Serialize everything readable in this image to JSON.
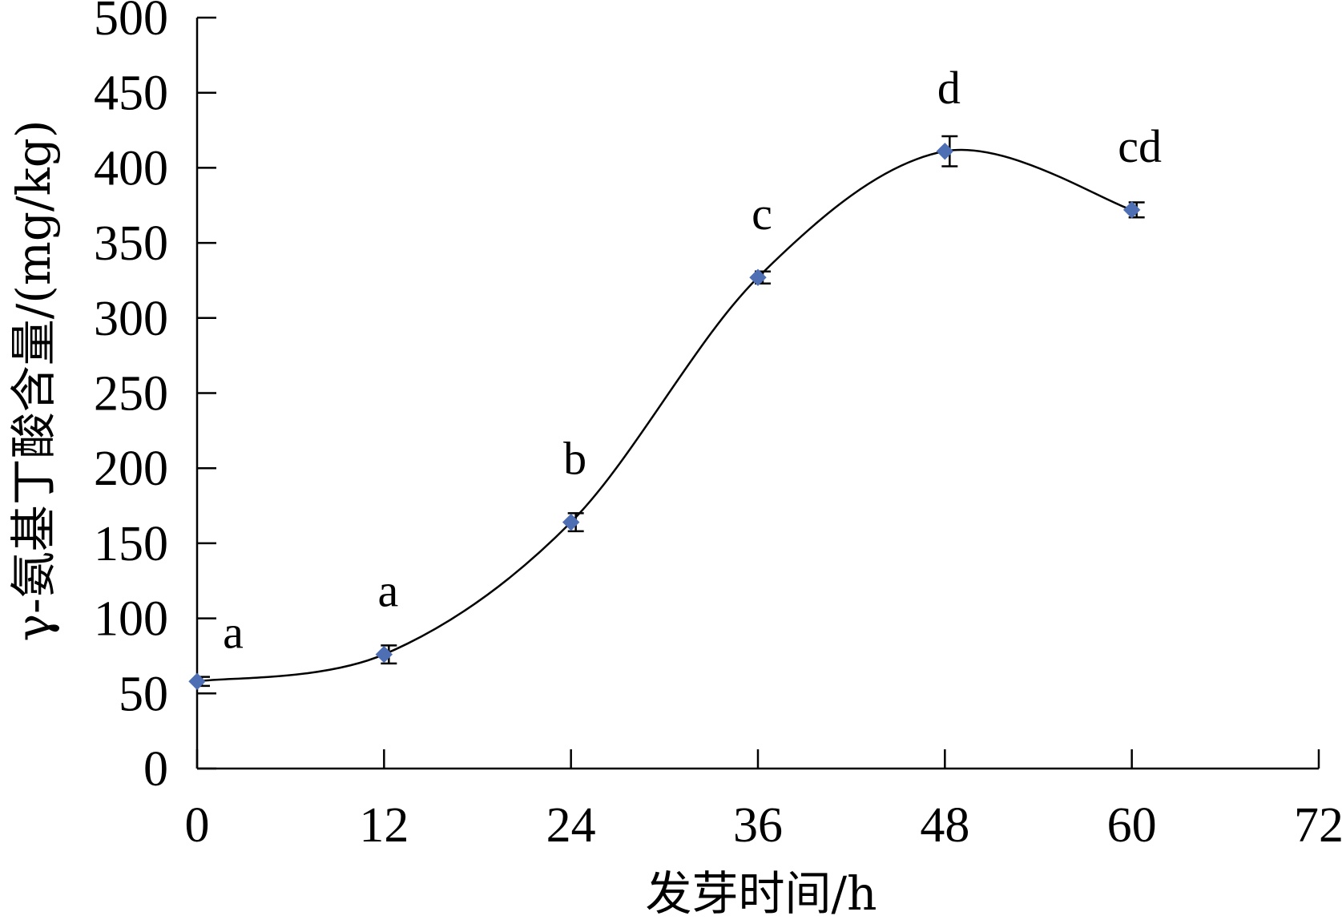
{
  "chart_data": {
    "type": "line",
    "xlabel": "发芽时间/h",
    "ylabel": "γ-氨基丁酸含量/(mg/kg)",
    "xlim": [
      0,
      72
    ],
    "ylim": [
      0,
      500
    ],
    "x_ticks": [
      "0",
      "12",
      "24",
      "36",
      "48",
      "60",
      "72"
    ],
    "y_ticks": [
      "0",
      "50",
      "100",
      "150",
      "200",
      "250",
      "300",
      "350",
      "400",
      "450",
      "500"
    ],
    "grid": false,
    "smooth": true,
    "colors": {
      "marker": "#4f6fb5",
      "line": "#000000"
    },
    "series": [
      {
        "x": [
          0,
          12,
          24,
          36,
          48,
          60
        ],
        "y": [
          58,
          76,
          164,
          327,
          411,
          372
        ],
        "error": [
          3,
          6,
          6,
          4,
          10,
          5
        ],
        "labels": [
          "a",
          "a",
          "b",
          "c",
          "d",
          "cd"
        ]
      }
    ]
  }
}
